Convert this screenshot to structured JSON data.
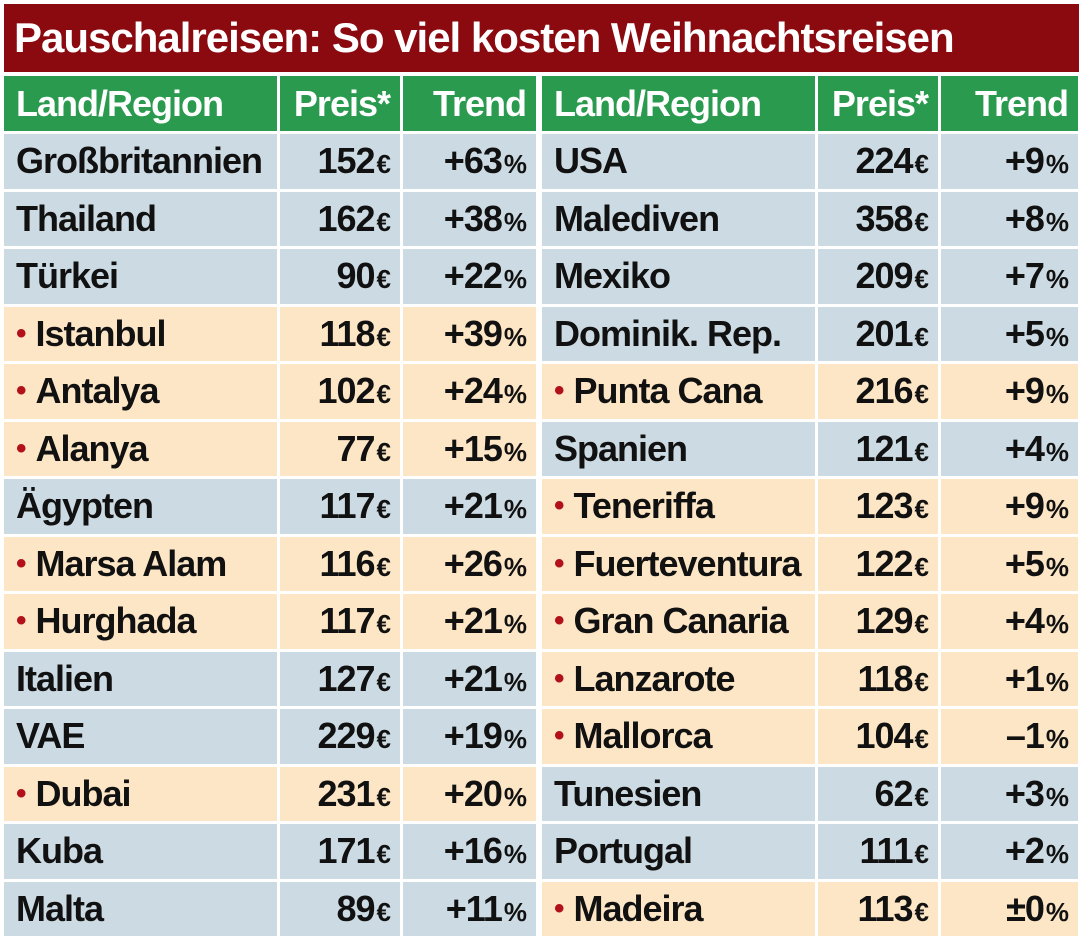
{
  "title": "Pauschalreisen: So viel kosten Weihnachtsreisen",
  "headers": {
    "region": "Land/Region",
    "price": "Preis*",
    "trend": "Trend"
  },
  "colors": {
    "title_bg": "#8b0a10",
    "header_bg": "#2a9a4e",
    "country_row_bg": "#ccdbe3",
    "sub_row_bg": "#fde6c6",
    "bullet": "#b3111a"
  },
  "left_rows": [
    {
      "name": "Großbritannien",
      "sub": false,
      "price": "152",
      "trend": "+63"
    },
    {
      "name": "Thailand",
      "sub": false,
      "price": "162",
      "trend": "+38"
    },
    {
      "name": "Türkei",
      "sub": false,
      "price": "90",
      "trend": "+22"
    },
    {
      "name": "Istanbul",
      "sub": true,
      "price": "118",
      "trend": "+39"
    },
    {
      "name": "Antalya",
      "sub": true,
      "price": "102",
      "trend": "+24"
    },
    {
      "name": "Alanya",
      "sub": true,
      "price": "77",
      "trend": "+15"
    },
    {
      "name": "Ägypten",
      "sub": false,
      "price": "117",
      "trend": "+21"
    },
    {
      "name": "Marsa Alam",
      "sub": true,
      "price": "116",
      "trend": "+26"
    },
    {
      "name": "Hurghada",
      "sub": true,
      "price": "117",
      "trend": "+21"
    },
    {
      "name": "Italien",
      "sub": false,
      "price": "127",
      "trend": "+21"
    },
    {
      "name": "VAE",
      "sub": false,
      "price": "229",
      "trend": "+19"
    },
    {
      "name": "Dubai",
      "sub": true,
      "price": "231",
      "trend": "+20"
    },
    {
      "name": "Kuba",
      "sub": false,
      "price": "171",
      "trend": "+16"
    },
    {
      "name": "Malta",
      "sub": false,
      "price": "89",
      "trend": "+11"
    }
  ],
  "right_rows": [
    {
      "name": "USA",
      "sub": false,
      "price": "224",
      "trend": "+9"
    },
    {
      "name": "Malediven",
      "sub": false,
      "price": "358",
      "trend": "+8"
    },
    {
      "name": "Mexiko",
      "sub": false,
      "price": "209",
      "trend": "+7"
    },
    {
      "name": "Dominik. Rep.",
      "sub": false,
      "price": "201",
      "trend": "+5"
    },
    {
      "name": "Punta Cana",
      "sub": true,
      "price": "216",
      "trend": "+9"
    },
    {
      "name": "Spanien",
      "sub": false,
      "price": "121",
      "trend": "+4"
    },
    {
      "name": "Teneriffa",
      "sub": true,
      "price": "123",
      "trend": "+9"
    },
    {
      "name": "Fuerteventura",
      "sub": true,
      "price": "122",
      "trend": "+5"
    },
    {
      "name": "Gran Canaria",
      "sub": true,
      "price": "129",
      "trend": "+4"
    },
    {
      "name": "Lanzarote",
      "sub": true,
      "price": "118",
      "trend": "+1"
    },
    {
      "name": "Mallorca",
      "sub": true,
      "price": "104",
      "trend": "–1"
    },
    {
      "name": "Tunesien",
      "sub": false,
      "price": "62",
      "trend": "+3"
    },
    {
      "name": "Portugal",
      "sub": false,
      "price": "111",
      "trend": "+2"
    },
    {
      "name": "Madeira",
      "sub": true,
      "price": "113",
      "trend": "±0"
    }
  ],
  "bullet_char": "•",
  "currency_unit": "€",
  "percent_unit": "%"
}
